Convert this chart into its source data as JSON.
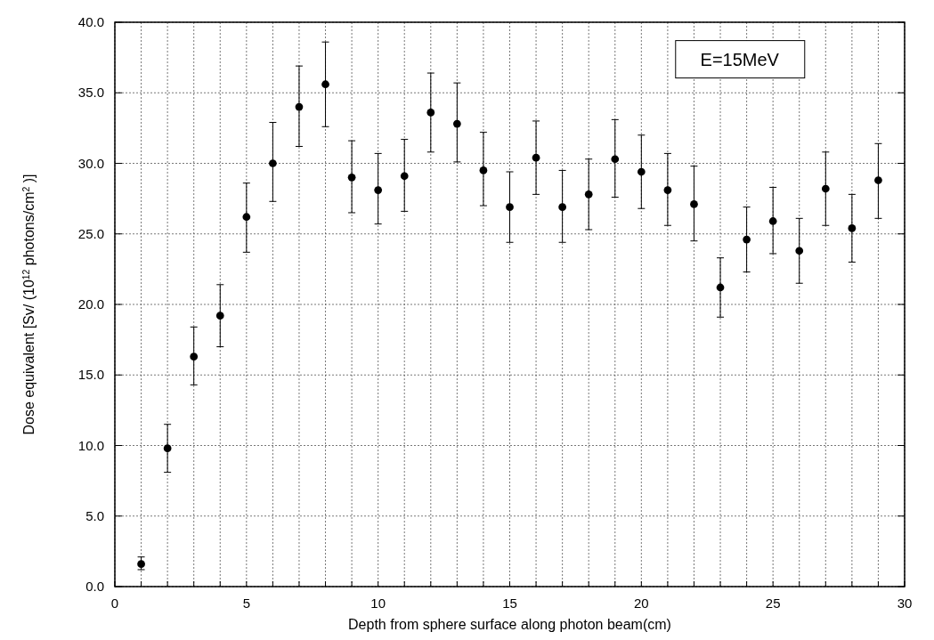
{
  "chart_data": {
    "type": "scatter",
    "xlabel": "Depth  from sphere surface along photon beam(cm)",
    "ylabel": "Dose equivalent [Sv/ (10$^{12}$ photons/cm$^{2}$ )]",
    "annotations": [
      "E=15MeV"
    ],
    "x": [
      1,
      2,
      3,
      4,
      5,
      6,
      7,
      8,
      9,
      10,
      11,
      12,
      13,
      14,
      15,
      16,
      17,
      18,
      19,
      20,
      21,
      22,
      23,
      24,
      25,
      26,
      27,
      28,
      29
    ],
    "series": [
      {
        "color": "#000000",
        "values": [
          1.6,
          9.8,
          16.3,
          19.2,
          26.2,
          30.0,
          34.0,
          35.6,
          29.0,
          28.1,
          29.1,
          33.6,
          32.8,
          29.5,
          26.9,
          30.4,
          26.9,
          27.8,
          30.3,
          29.4,
          28.1,
          27.1,
          21.2,
          24.6,
          25.9,
          23.8,
          28.2,
          25.4,
          28.8
        ],
        "errors": [
          [
            1.2,
            2.1
          ],
          [
            8.1,
            11.5
          ],
          [
            14.3,
            18.4
          ],
          [
            17.0,
            21.4
          ],
          [
            23.7,
            28.6
          ],
          [
            27.3,
            32.9
          ],
          [
            31.2,
            36.9
          ],
          [
            32.6,
            38.6
          ],
          [
            26.5,
            31.6
          ],
          [
            25.7,
            30.7
          ],
          [
            26.6,
            31.7
          ],
          [
            30.8,
            36.4
          ],
          [
            30.1,
            35.7
          ],
          [
            27.0,
            32.2
          ],
          [
            24.4,
            29.4
          ],
          [
            27.8,
            33.0
          ],
          [
            24.4,
            29.5
          ],
          [
            25.3,
            30.3
          ],
          [
            27.6,
            33.1
          ],
          [
            26.8,
            32.0
          ],
          [
            25.6,
            30.7
          ],
          [
            24.5,
            29.8
          ],
          [
            19.1,
            23.3
          ],
          [
            22.3,
            26.9
          ],
          [
            23.6,
            28.3
          ],
          [
            21.5,
            26.1
          ],
          [
            25.6,
            30.8
          ],
          [
            23.0,
            27.8
          ],
          [
            26.1,
            31.4
          ]
        ]
      }
    ],
    "xlim": [
      0,
      30
    ],
    "xticks": [
      0,
      {
        "value": 1,
        "label": null
      },
      {
        "value": 2,
        "label": null
      },
      {
        "value": 3,
        "label": null
      },
      {
        "value": 4,
        "label": null
      },
      5,
      {
        "value": 6,
        "label": null
      },
      {
        "value": 7,
        "label": null
      },
      {
        "value": 8,
        "label": null
      },
      {
        "value": 9,
        "label": null
      },
      10,
      {
        "value": 11,
        "label": null
      },
      {
        "value": 12,
        "label": null
      },
      {
        "value": 13,
        "label": null
      },
      {
        "value": 14,
        "label": null
      },
      15,
      {
        "value": 16,
        "label": null
      },
      {
        "value": 17,
        "label": null
      },
      {
        "value": 18,
        "label": null
      },
      {
        "value": 19,
        "label": null
      },
      20,
      {
        "value": 21,
        "label": null
      },
      {
        "value": 22,
        "label": null
      },
      {
        "value": 23,
        "label": null
      },
      {
        "value": 24,
        "label": null
      },
      25,
      {
        "value": 26,
        "label": null
      },
      {
        "value": 27,
        "label": null
      },
      {
        "value": 28,
        "label": null
      },
      {
        "value": 29,
        "label": null
      },
      30
    ],
    "ylim": [
      0,
      40
    ],
    "yticks": [
      {
        "value": 0,
        "label": "0.0"
      },
      {
        "value": 5,
        "label": "5.0"
      },
      {
        "value": 10,
        "label": "10.0"
      },
      {
        "value": 15,
        "label": "15.0"
      },
      {
        "value": 20,
        "label": "20.0"
      },
      {
        "value": 25,
        "label": "25.0"
      },
      {
        "value": 30,
        "label": "30.0"
      },
      {
        "value": 35,
        "label": "35.0"
      },
      {
        "value": 40,
        "label": "40.0"
      }
    ],
    "grid": true,
    "marker": "circle"
  }
}
